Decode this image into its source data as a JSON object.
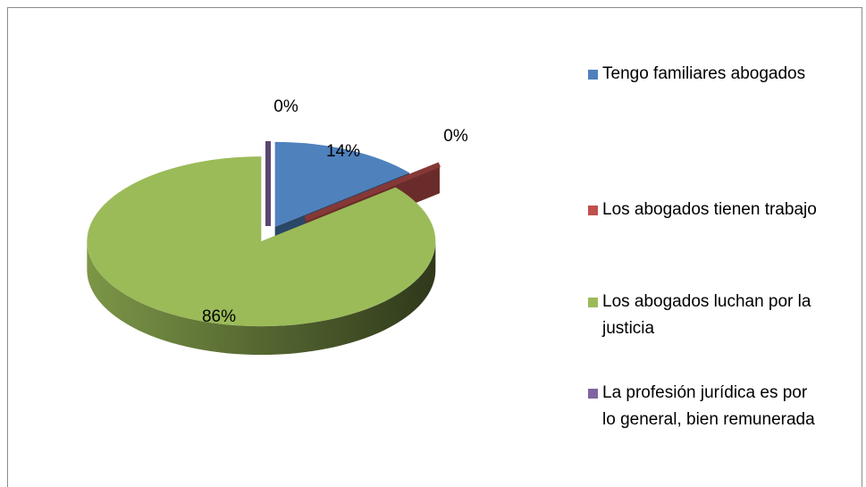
{
  "chart_data": {
    "type": "pie3d",
    "categories": [
      "Tengo familiares abogados",
      "Los abogados tienen trabajo",
      "Los abogados luchan por la justicia",
      "La profesión jurídica es por lo general, bien remunerada"
    ],
    "values": [
      14,
      0,
      86,
      0
    ],
    "value_labels": [
      "14%",
      "0%",
      "86%",
      "0%"
    ],
    "colors": [
      "#4f81bd",
      "#c0504d",
      "#9bbb59",
      "#8064a2"
    ],
    "legend": "right"
  }
}
